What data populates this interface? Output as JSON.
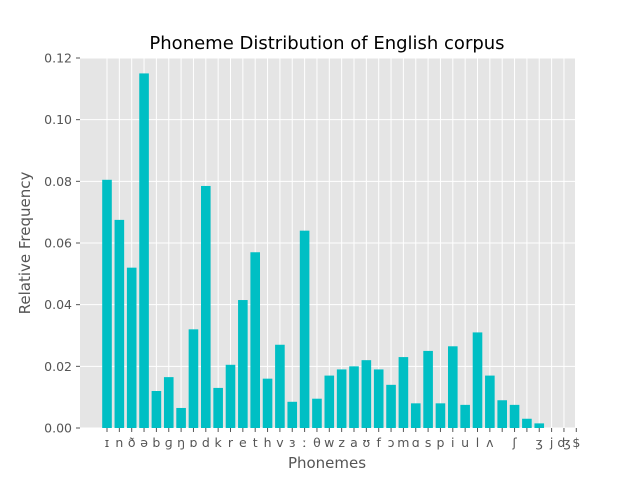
{
  "chart_data": {
    "type": "bar",
    "title": "Phoneme Distribution of English corpus",
    "xlabel": "Phonemes",
    "ylabel": "Relative Frequency",
    "ylim": [
      0,
      0.12
    ],
    "yticks": [
      "0.00",
      "0.02",
      "0.04",
      "0.06",
      "0.08",
      "0.10",
      "0.12"
    ],
    "grid": true,
    "legend": "none",
    "categories": [
      "ɪ",
      "n",
      "ð",
      "ə",
      "b",
      "ɡ",
      "ŋ",
      "ɒ",
      "d",
      "k",
      "r",
      "e",
      "t",
      "h",
      "v",
      "ɜ",
      "ː",
      "θ",
      "w",
      "z",
      "a",
      "ʊ",
      "f",
      "ɔ",
      "m",
      "ɑ",
      "s",
      "p",
      "i",
      "u",
      "l",
      "ʌ",
      "",
      "ʃ",
      "",
      "ʒ",
      "j",
      "ʤ",
      "$"
    ],
    "values": [
      0.0805,
      0.0675,
      0.052,
      0.115,
      0.012,
      0.0165,
      0.0065,
      0.032,
      0.0785,
      0.013,
      0.0205,
      0.0415,
      0.057,
      0.016,
      0.027,
      0.0085,
      0.064,
      0.0095,
      0.017,
      0.019,
      0.02,
      0.022,
      0.019,
      0.014,
      0.023,
      0.008,
      0.025,
      0.008,
      0.0265,
      0.0075,
      0.031,
      0.017,
      0.009,
      0.0075,
      0.003,
      0.0015,
      0.0,
      0.0,
      0.0
    ],
    "colors": {
      "bar": "#00bfc4",
      "background": "#e5e5e5",
      "grid": "#ffffff",
      "text": "#555555"
    }
  }
}
